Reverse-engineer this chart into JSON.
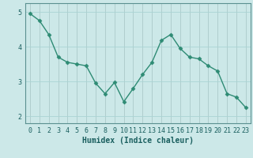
{
  "x": [
    0,
    1,
    2,
    3,
    4,
    5,
    6,
    7,
    8,
    9,
    10,
    11,
    12,
    13,
    14,
    15,
    16,
    17,
    18,
    19,
    20,
    21,
    22,
    23
  ],
  "y": [
    4.95,
    4.75,
    4.35,
    3.7,
    3.55,
    3.5,
    3.45,
    2.95,
    2.65,
    2.97,
    2.42,
    2.8,
    3.2,
    3.55,
    4.18,
    4.35,
    3.95,
    3.7,
    3.65,
    3.45,
    3.3,
    2.65,
    2.55,
    2.25
  ],
  "line_color": "#2e8b74",
  "marker": "D",
  "markersize": 2.5,
  "linewidth": 1.0,
  "bg_color": "#cce8e8",
  "grid_color": "#aad4d4",
  "xlabel": "Humidex (Indice chaleur)",
  "xlabel_fontsize": 7,
  "tick_fontsize": 6,
  "ylim": [
    1.8,
    5.25
  ],
  "yticks": [
    2,
    3,
    4,
    5
  ],
  "xlim": [
    -0.5,
    23.5
  ],
  "tick_color": "#1a5f5f",
  "spine_color": "#5a9090"
}
